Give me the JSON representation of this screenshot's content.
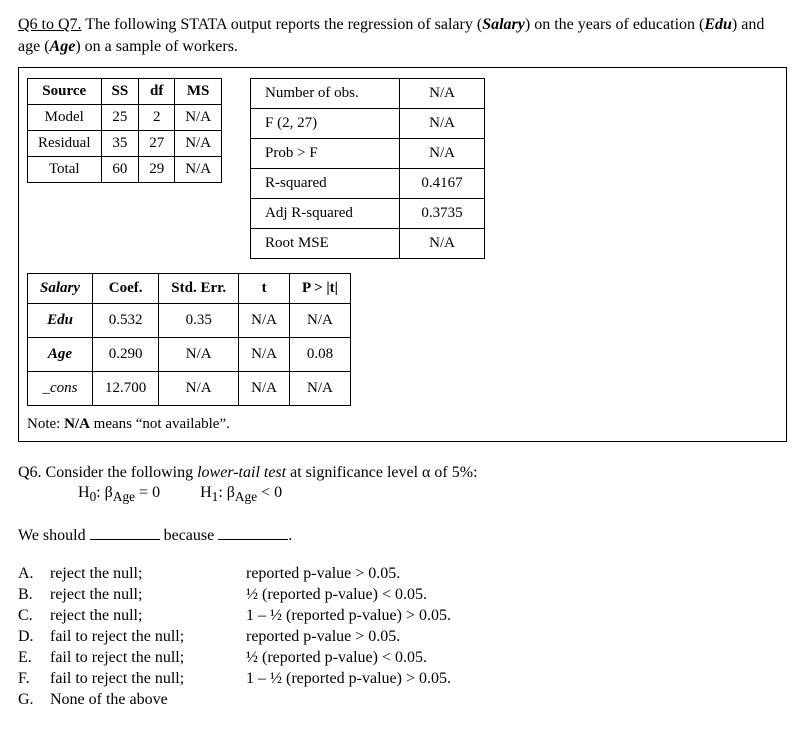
{
  "intro": {
    "heading": "Q6 to Q7.",
    "text1": " The following STATA output reports the regression of salary (",
    "salary": "Salary",
    "text2": ") on the years of education (",
    "edu": "Edu",
    "text3": ") and age (",
    "age": "Age",
    "text4": ") on a sample of workers."
  },
  "anova": {
    "headers": {
      "source": "Source",
      "ss": "SS",
      "df": "df",
      "ms": "MS"
    },
    "rows": [
      {
        "label": "Model",
        "ss": "25",
        "df": "2",
        "ms": "N/A"
      },
      {
        "label": "Residual",
        "ss": "35",
        "df": "27",
        "ms": "N/A"
      },
      {
        "label": "Total",
        "ss": "60",
        "df": "29",
        "ms": "N/A"
      }
    ]
  },
  "stats": {
    "rows": [
      {
        "label": "Number of obs.",
        "val": "N/A"
      },
      {
        "label": "F (2, 27)",
        "val": "N/A"
      },
      {
        "label": "Prob > F",
        "val": "N/A"
      },
      {
        "label": "R-squared",
        "val": "0.4167"
      },
      {
        "label": "Adj R-squared",
        "val": "0.3735"
      },
      {
        "label": "Root MSE",
        "val": "N/A"
      }
    ]
  },
  "coefs": {
    "headers": {
      "var": "Salary",
      "coef": "Coef.",
      "se": "Std. Err.",
      "t": "t",
      "p": "P > |t|"
    },
    "rows": [
      {
        "label": "Edu",
        "coef": "0.532",
        "se": "0.35",
        "t": "N/A",
        "p": "N/A"
      },
      {
        "label": "Age",
        "coef": "0.290",
        "se": "N/A",
        "t": "N/A",
        "p": "0.08"
      },
      {
        "label": "_cons",
        "coef": "12.700",
        "se": "N/A",
        "t": "N/A",
        "p": "N/A"
      }
    ]
  },
  "note": {
    "pre": "Note: ",
    "na": "N/A",
    "post": " means “not available”."
  },
  "q6": {
    "line1a": "Q6. Consider the following ",
    "line1b": "lower-tail test",
    "line1c": " at significance level α of 5%:",
    "h0a": "H",
    "h0sub": "0",
    "h0b": ":  β",
    "bsub": "Age",
    "h0c": " = 0",
    "h1a": "H",
    "h1sub": "1",
    "h1b": ":  β",
    "h1c": " < 0",
    "sent1": "We should ",
    "sent2": " because ",
    "sent3": "."
  },
  "options": [
    {
      "l": "A.",
      "a": "reject the null;",
      "b": "reported p-value > 0.05."
    },
    {
      "l": "B.",
      "a": "reject the null;",
      "b": "½ (reported p-value) < 0.05."
    },
    {
      "l": "C.",
      "a": "reject the null;",
      "b": "1 – ½ (reported p-value) > 0.05."
    },
    {
      "l": "D.",
      "a": "fail to reject the null;",
      "b": "reported p-value > 0.05."
    },
    {
      "l": "E.",
      "a": "fail to reject the null;",
      "b": "½ (reported p-value) < 0.05."
    },
    {
      "l": "F.",
      "a": "fail to reject the null;",
      "b": "1 – ½ (reported p-value) > 0.05."
    },
    {
      "l": "G.",
      "a": "None of the above",
      "b": ""
    }
  ]
}
